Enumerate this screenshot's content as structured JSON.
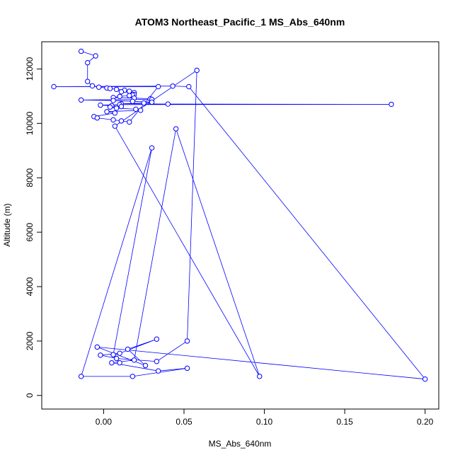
{
  "chart_data": {
    "type": "line",
    "title": "ATOM3 Northeast_Pacific_1 MS_Abs_640nm",
    "xlabel": "MS_Abs_640nm",
    "ylabel": "Altitude (m)",
    "xlim": [
      -0.0385,
      0.2085
    ],
    "ylim": [
      -500,
      13000
    ],
    "xticks": [
      0.0,
      0.05,
      0.1,
      0.15,
      0.2
    ],
    "xtick_labels": [
      "0.00",
      "0.05",
      "0.10",
      "0.15",
      "0.20"
    ],
    "yticks": [
      0,
      2000,
      4000,
      6000,
      8000,
      10000,
      12000
    ],
    "ytick_labels": [
      "0",
      "2000",
      "4000",
      "6000",
      "8000",
      "10000",
      "12000"
    ],
    "color": "#0000ff",
    "marker": "open-circle",
    "grid": false,
    "series": [
      {
        "x": [
          -0.014,
          -0.005,
          -0.01,
          -0.01,
          -0.007,
          -0.003,
          0.002,
          0.004,
          0.008,
          0.013,
          0.016,
          0.011,
          0.019,
          0.019,
          0.018,
          0.016,
          0.01,
          0.006,
          0.019,
          0.029,
          0.03,
          -0.014,
          0.006,
          0.018,
          0.03,
          0.025,
          0.011,
          0.04,
          0.179,
          0.01,
          -0.002,
          0.005,
          0.011,
          0.004,
          0.008,
          0.02,
          0.023,
          0.002,
          0.007,
          -0.006,
          -0.004,
          0.006,
          0.011,
          0.016,
          0.034,
          -0.031,
          0.043,
          0.053,
          0.2,
          -0.004,
          0.026,
          0.015,
          0.033,
          0.01,
          -0.002,
          0.008,
          0.033,
          0.052,
          0.058,
          0.007,
          0.097,
          0.045,
          0.019,
          0.005,
          0.034,
          0.052,
          0.018,
          -0.014,
          0.03,
          0.006,
          0.01
        ],
        "y": [
          12650,
          12480,
          12230,
          11540,
          11380,
          11330,
          11300,
          11280,
          11250,
          11220,
          11180,
          11160,
          11130,
          11060,
          11040,
          11020,
          10990,
          10950,
          10930,
          10900,
          10880,
          10860,
          10840,
          10810,
          10780,
          10750,
          10720,
          10710,
          10700,
          10690,
          10670,
          10650,
          10620,
          10600,
          10560,
          10520,
          10480,
          10430,
          10380,
          10250,
          10200,
          10130,
          10090,
          10050,
          11350,
          11350,
          11370,
          11350,
          600,
          1780,
          1100,
          1700,
          2070,
          1550,
          1480,
          1360,
          1250,
          2000,
          11950,
          9900,
          700,
          9800,
          1300,
          1200,
          900,
          1000,
          700,
          700,
          9100,
          1500,
          1200
        ]
      }
    ]
  }
}
